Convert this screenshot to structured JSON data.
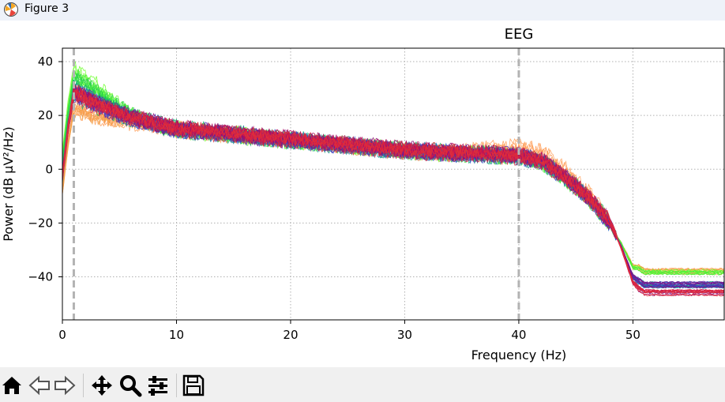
{
  "window": {
    "title": "Figure 3",
    "app_icon": "matplotlib-icon"
  },
  "toolbar": {
    "buttons": [
      {
        "name": "home-button",
        "icon": "home-icon"
      },
      {
        "name": "back-button",
        "icon": "back-arrow-icon"
      },
      {
        "name": "forward-button",
        "icon": "forward-arrow-icon"
      },
      {
        "name": "pan-button",
        "icon": "move-icon"
      },
      {
        "name": "zoom-button",
        "icon": "search-icon"
      },
      {
        "name": "configure-subplots-button",
        "icon": "sliders-icon"
      },
      {
        "name": "save-button",
        "icon": "floppy-disk-icon"
      }
    ]
  },
  "colors": {
    "title_bar": "#eef2f9",
    "toolbar": "#f0f0f0",
    "grid": "#b0b0b0",
    "marker": "#b3b3b3",
    "series_palette": [
      "#ff9f5a",
      "#f4a04a",
      "#6fff2e",
      "#4ef03a",
      "#29d24c",
      "#0fb36f",
      "#1a8c9a",
      "#2f5fd0",
      "#4b2fb8",
      "#6a1f9a",
      "#8a0f7a",
      "#b0105e",
      "#d81b44",
      "#e0303a"
    ]
  },
  "chart_data": {
    "type": "line",
    "title": "EEG",
    "xlabel": "Frequency (Hz)",
    "ylabel": "Power (dB μV²/Hz)",
    "xlim": [
      0,
      58
    ],
    "ylim": [
      -56,
      45
    ],
    "xticks": [
      0,
      10,
      20,
      30,
      40,
      50
    ],
    "yticks": [
      40,
      20,
      0,
      -20,
      -40
    ],
    "ytick_labels": [
      "40",
      "20",
      "0",
      "−20",
      "−40"
    ],
    "grid": true,
    "vertical_markers": [
      1,
      40
    ],
    "series_count": 60,
    "spectrum_profile": {
      "x": [
        0,
        0.5,
        1,
        2,
        4,
        6,
        8,
        10,
        15,
        20,
        25,
        30,
        35,
        40,
        42,
        44,
        46,
        48,
        49,
        50,
        51,
        55,
        58
      ],
      "y": [
        -3,
        15,
        28,
        26,
        22,
        19,
        17,
        15,
        13,
        11,
        9,
        7,
        6,
        5,
        3,
        -3,
        -10,
        -20,
        -29,
        -40,
        -43,
        -43,
        -43
      ]
    },
    "level_range": {
      "low_freq_peak": [
        26,
        40
      ],
      "stopband": [
        -46,
        -37
      ]
    }
  }
}
